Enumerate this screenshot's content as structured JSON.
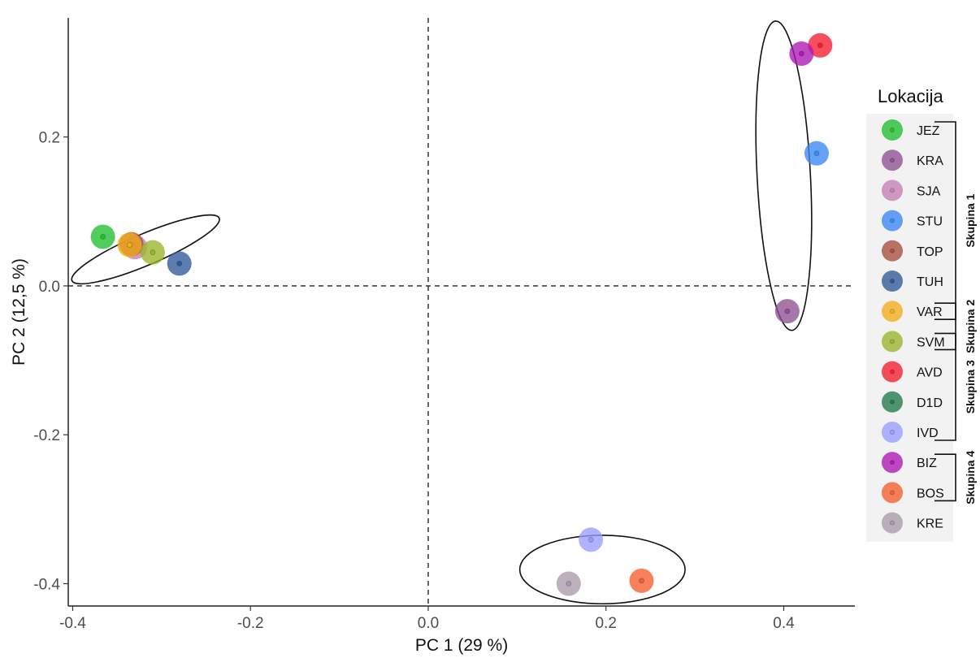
{
  "chart_data": {
    "type": "scatter",
    "xlabel": "PC 1 (29 %)",
    "ylabel": "PC 2 (12,5 %)",
    "xlim": [
      -0.405,
      0.48
    ],
    "ylim": [
      -0.43,
      0.36
    ],
    "x_ticks": [
      -0.4,
      -0.2,
      0.0,
      0.2,
      0.4
    ],
    "y_ticks": [
      -0.4,
      -0.2,
      0.0,
      0.2
    ],
    "x_tick_labels": [
      "-0.4",
      "-0.2",
      "0.0",
      "0.2",
      "0.4"
    ],
    "y_tick_labels": [
      "-0.4",
      "-0.2",
      "0.0",
      "0.2"
    ],
    "grid": false,
    "reference_lines": {
      "x": 0.0,
      "y": 0.0,
      "style": "dashed"
    },
    "legend": {
      "title": "Lokacija",
      "placement": "right"
    },
    "series": [
      {
        "name": "JEZ",
        "color": "#1fbf2f",
        "x": -0.366,
        "y": 0.066
      },
      {
        "name": "KRA",
        "color": "#8e4f94",
        "x": 0.404,
        "y": -0.034
      },
      {
        "name": "SJA",
        "color": "#c57fb5",
        "x": -0.33,
        "y": 0.052
      },
      {
        "name": "STU",
        "color": "#3a88f2",
        "x": 0.437,
        "y": 0.178
      },
      {
        "name": "TOP",
        "color": "#a84e3e",
        "x": -0.334,
        "y": 0.056
      },
      {
        "name": "TUH",
        "color": "#2e5897",
        "x": -0.28,
        "y": 0.03
      },
      {
        "name": "VAR",
        "color": "#f2ad1c",
        "x": -0.336,
        "y": 0.055
      },
      {
        "name": "SVM",
        "color": "#9ab52a",
        "x": -0.31,
        "y": 0.045
      },
      {
        "name": "AVD",
        "color": "#f21e30",
        "x": 0.441,
        "y": 0.323
      },
      {
        "name": "D1D",
        "color": "#217a4c",
        "x": null,
        "y": null
      },
      {
        "name": "IVD",
        "color": "#9b9cff",
        "x": 0.183,
        "y": -0.341
      },
      {
        "name": "BIZ",
        "color": "#ad17b4",
        "x": 0.42,
        "y": 0.312
      },
      {
        "name": "BOS",
        "color": "#f55e2c",
        "x": 0.24,
        "y": -0.396
      },
      {
        "name": "KRE",
        "color": "#a89aa8",
        "x": 0.158,
        "y": -0.4
      }
    ],
    "ellipses": [
      {
        "cx": -0.318,
        "cy": 0.049,
        "rx": 0.09,
        "ry": 0.021,
        "angle_deg": 23
      },
      {
        "cx": 0.4,
        "cy": 0.148,
        "rx": 0.03,
        "ry": 0.208,
        "angle_deg": 3
      },
      {
        "cx": 0.196,
        "cy": -0.381,
        "rx": 0.093,
        "ry": 0.046,
        "angle_deg": 0
      }
    ],
    "groups": [
      {
        "label": "Skupina 1",
        "from": "JEZ",
        "to": "VAR"
      },
      {
        "label": "Skupina 2",
        "from": "VAR",
        "to": "SVM"
      },
      {
        "label": "Skupina 3",
        "from": "SVM",
        "to": "IVD"
      },
      {
        "label": "Skupina 4",
        "from": "BIZ",
        "to": "BOS"
      }
    ]
  }
}
